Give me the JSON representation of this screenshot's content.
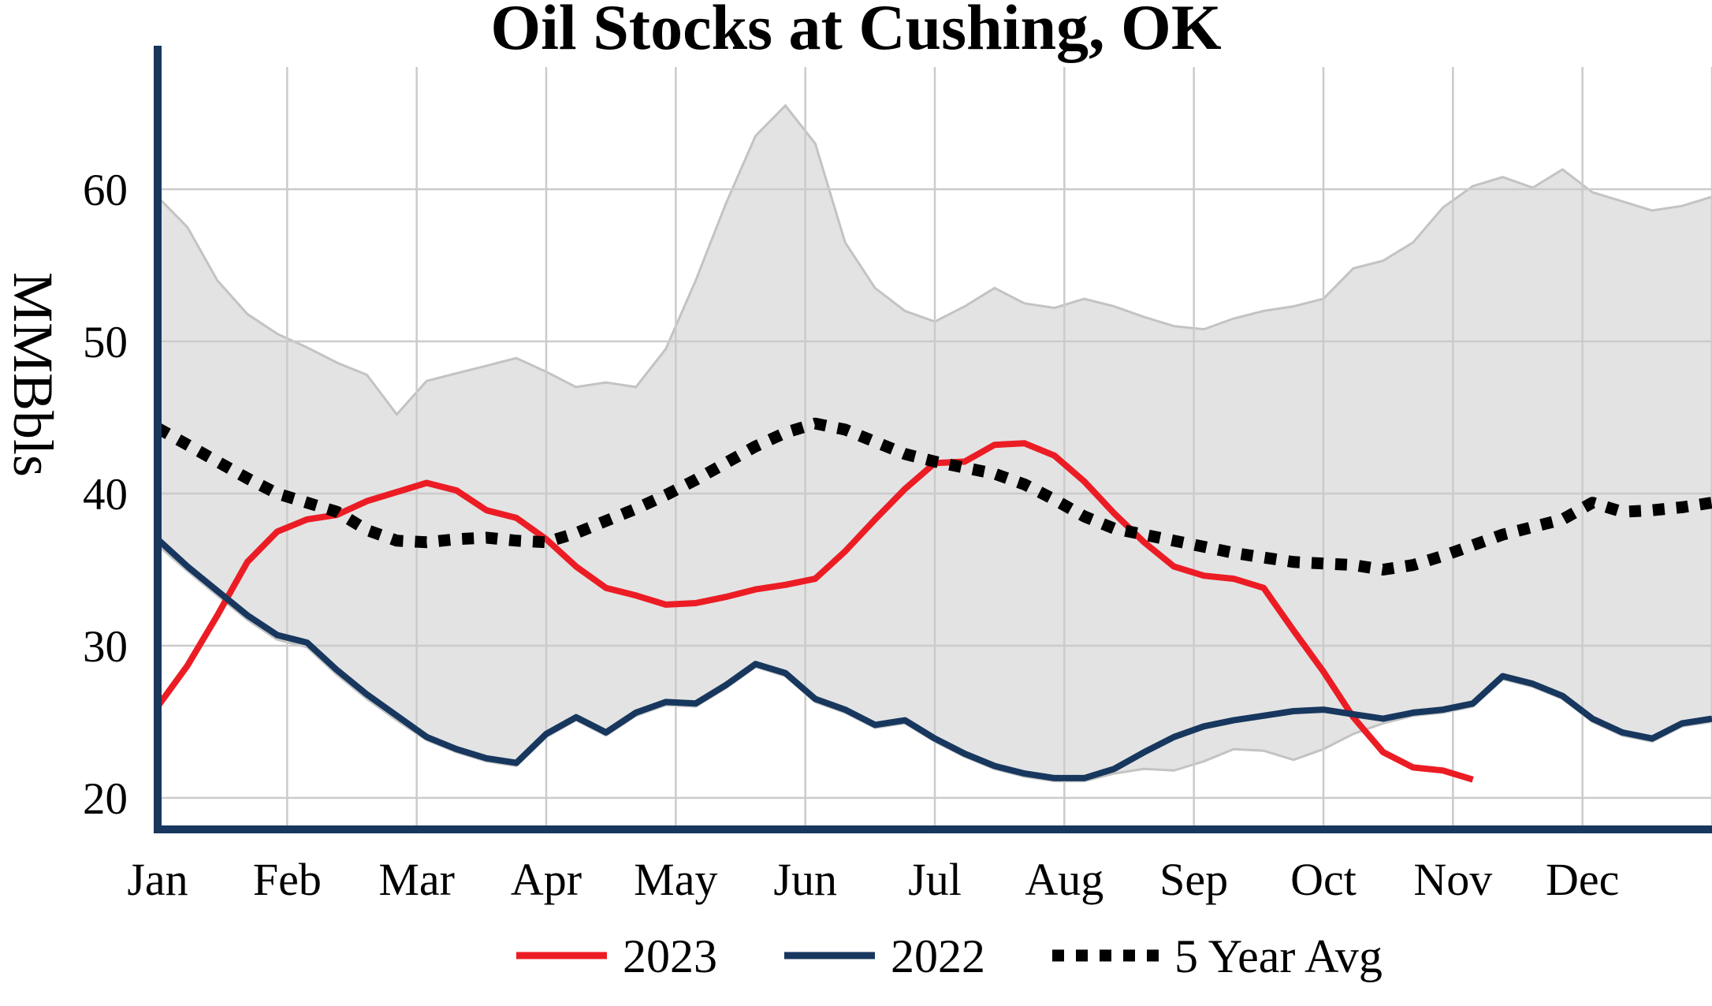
{
  "chart_data": {
    "type": "line",
    "title": "Oil Stocks at Cushing, OK",
    "ylabel": "MMBbls",
    "x_tick_labels": [
      "Jan",
      "Feb",
      "Mar",
      "Apr",
      "May",
      "Jun",
      "Jul",
      "Aug",
      "Sep",
      "Oct",
      "Nov",
      "Dec"
    ],
    "y_ticks": [
      20,
      30,
      40,
      50,
      60
    ],
    "ylim": [
      18,
      68
    ],
    "x_unit": "week_of_year",
    "x_range_weeks": [
      0,
      52
    ],
    "grid": true,
    "legend_position": "bottom",
    "band": {
      "description": "5-year min-max range (shaded)",
      "fill": "#e3e3e3",
      "edge": "#c3c3c3",
      "upper": [
        59.5,
        57.5,
        54.0,
        51.8,
        50.5,
        49.6,
        48.6,
        47.8,
        45.2,
        47.4,
        47.9,
        48.4,
        48.9,
        48.0,
        47.0,
        47.3,
        47.0,
        49.5,
        54.0,
        59.0,
        63.5,
        65.5,
        63.0,
        56.5,
        53.5,
        52.0,
        51.3,
        52.3,
        53.5,
        52.5,
        52.2,
        52.8,
        52.3,
        51.6,
        51.0,
        50.8,
        51.5,
        52.0,
        52.3,
        52.8,
        54.8,
        55.3,
        56.5,
        58.8,
        60.2,
        60.8,
        60.1,
        61.3,
        59.8,
        59.2,
        58.6,
        58.9,
        59.5
      ],
      "lower": [
        36.6,
        34.9,
        33.3,
        31.7,
        30.4,
        29.9,
        28.1,
        26.5,
        25.1,
        23.8,
        23.0,
        22.4,
        22.1,
        24.0,
        25.1,
        24.1,
        25.4,
        26.1,
        26.0,
        27.2,
        28.6,
        28.0,
        26.3,
        25.6,
        24.6,
        24.9,
        23.7,
        22.7,
        21.9,
        21.4,
        21.1,
        21.1,
        21.6,
        21.9,
        21.8,
        22.4,
        23.2,
        23.1,
        22.5,
        23.2,
        24.2,
        24.9,
        25.4,
        25.6,
        26.0,
        27.8,
        27.3,
        26.5,
        25.0,
        24.1,
        23.7,
        24.7,
        25.0
      ]
    },
    "series": [
      {
        "name": "2023",
        "style": "solid",
        "color": "#ec1c24",
        "start_week": 0,
        "values": [
          26.0,
          28.7,
          32.0,
          35.5,
          37.5,
          38.3,
          38.6,
          39.5,
          40.1,
          40.7,
          40.2,
          38.9,
          38.4,
          37.0,
          35.2,
          33.8,
          33.3,
          32.7,
          32.8,
          33.2,
          33.7,
          34.0,
          34.4,
          36.2,
          38.3,
          40.3,
          42.0,
          42.1,
          43.2,
          43.3,
          42.5,
          40.8,
          38.7,
          36.8,
          35.2,
          34.6,
          34.4,
          33.8,
          31.0,
          28.3,
          25.3,
          23.0,
          22.0,
          21.8,
          21.2
        ]
      },
      {
        "name": "2022",
        "style": "solid",
        "color": "#17375e",
        "start_week": 0,
        "values": [
          37.0,
          35.2,
          33.6,
          32.0,
          30.7,
          30.2,
          28.4,
          26.8,
          25.4,
          24.0,
          23.2,
          22.6,
          22.3,
          24.2,
          25.3,
          24.3,
          25.6,
          26.3,
          26.2,
          27.4,
          28.8,
          28.2,
          26.5,
          25.8,
          24.8,
          25.1,
          23.9,
          22.9,
          22.1,
          21.6,
          21.3,
          21.3,
          21.9,
          23.0,
          24.0,
          24.7,
          25.1,
          25.4,
          25.7,
          25.8,
          25.5,
          25.2,
          25.6,
          25.8,
          26.2,
          28.0,
          27.5,
          26.7,
          25.2,
          24.3,
          23.9,
          24.9,
          25.2
        ]
      },
      {
        "name": "5 Year Avg",
        "style": "dotted",
        "color": "#000000",
        "start_week": 0,
        "values": [
          44.3,
          43.2,
          42.1,
          41.0,
          40.0,
          39.4,
          38.8,
          37.6,
          36.9,
          36.8,
          37.0,
          37.1,
          36.9,
          36.8,
          37.4,
          38.2,
          39.0,
          39.9,
          40.9,
          42.0,
          43.1,
          44.0,
          44.6,
          44.2,
          43.4,
          42.6,
          42.1,
          41.7,
          41.3,
          40.6,
          39.6,
          38.5,
          37.7,
          37.3,
          36.9,
          36.5,
          36.1,
          35.8,
          35.5,
          35.4,
          35.3,
          35.0,
          35.3,
          35.9,
          36.6,
          37.3,
          37.8,
          38.3,
          39.4,
          38.8,
          38.9,
          39.1,
          39.4
        ]
      }
    ],
    "colors": {
      "axis": "#17375e",
      "grid": "#cbcbcb"
    }
  }
}
